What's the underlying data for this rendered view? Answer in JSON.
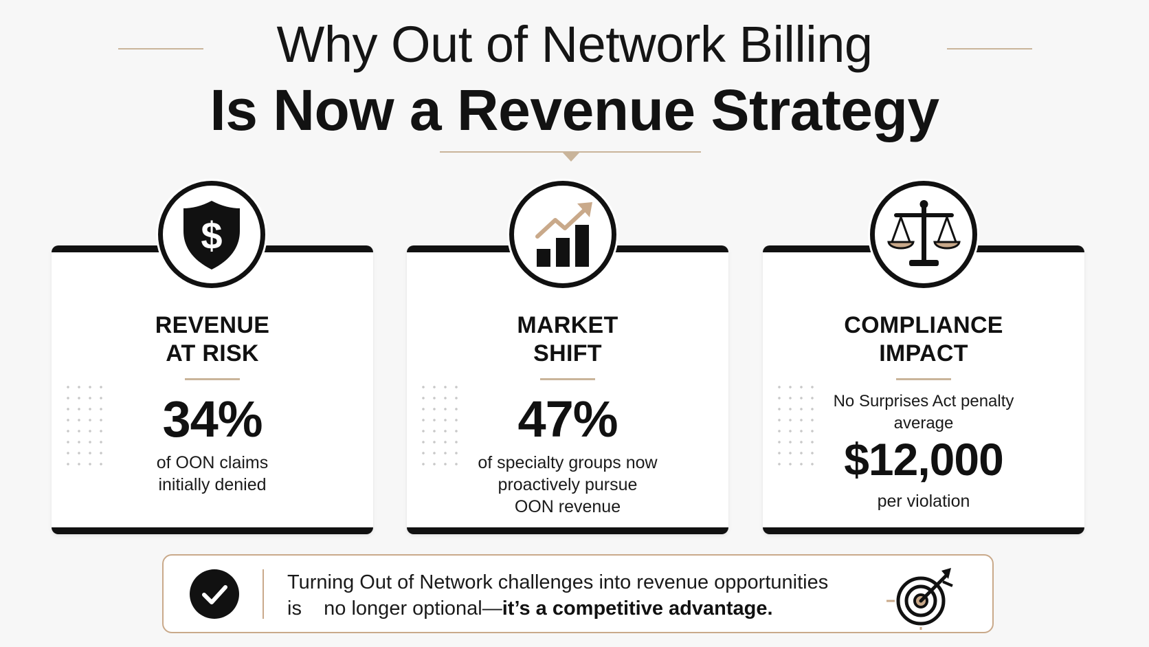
{
  "header": {
    "title_line1": "Why Out of Network Billing",
    "title_line2": "Is Now a Revenue Strategy"
  },
  "cards": [
    {
      "icon": "shield-dollar-icon",
      "title_line1": "REVENUE",
      "title_line2": "AT RISK",
      "stat": "34%",
      "desc_line1": "of OON claims",
      "desc_line2": "initially denied"
    },
    {
      "icon": "growth-chart-icon",
      "title_line1": "MARKET",
      "title_line2": "SHIFT",
      "stat": "47%",
      "desc_line1": "of specialty groups now",
      "desc_line2": "proactively pursue",
      "desc_line3": "OON revenue"
    },
    {
      "icon": "scales-icon",
      "title_line1": "COMPLIANCE",
      "title_line2": "IMPACT",
      "pre_line1": "No Surprises Act penalty",
      "pre_line2": "average",
      "stat": "$12,000",
      "desc_line1": "per violation"
    }
  ],
  "banner": {
    "icon": "checkmark-icon",
    "line1": "Turning Out of Network challenges into revenue opportunities",
    "line2_regular": "is    no longer optional—",
    "line2_bold": "it’s a competitive advantage.",
    "end_icon": "target-arrow-icon"
  },
  "colors": {
    "accent": "#c9b49a",
    "dark": "#111111",
    "background": "#f7f7f7"
  }
}
